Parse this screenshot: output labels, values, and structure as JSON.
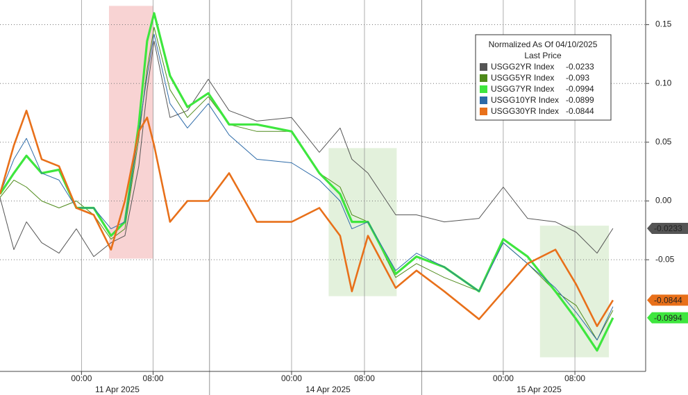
{
  "chart_data": {
    "type": "line",
    "legend_title": "Normalized As Of 04/10/2025",
    "legend_subtitle": "Last Price",
    "x": [
      -9.1,
      -7.55,
      -6.15,
      -4.45,
      -2.51,
      -0.57,
      1.37,
      3.3,
      4.85,
      6.4,
      7.33,
      8.11,
      9.89,
      11.83,
      14.16,
      16.48,
      19.58,
      23.46,
      26.56,
      28.88,
      30.2,
      31.99,
      35.09,
      37.41,
      40.51,
      44.39,
      47.1,
      49.81,
      52.92,
      55.24,
      57.57,
      59.35
    ],
    "xlim": [
      -9.1,
      63
    ],
    "xticks": [
      {
        "value": 0,
        "label": "00:00"
      },
      {
        "value": 8,
        "label": "08:00"
      },
      {
        "value": 23.46,
        "label": "00:00"
      },
      {
        "value": 31.6,
        "label": "08:00"
      },
      {
        "value": 47.1,
        "label": "00:00"
      },
      {
        "value": 55.1,
        "label": "08:00"
      }
    ],
    "date_labels": [
      "11 Apr 2025",
      "14 Apr 2025",
      "15 Apr 2025"
    ],
    "day_breaks": [
      14.3,
      38
    ],
    "ylim": [
      -0.145,
      0.171
    ],
    "yticks": [
      0.15,
      {
        "value": 0.1,
        "label": "0.10"
      },
      0.05,
      {
        "value": 0,
        "label": "0.00"
      },
      -0.05
    ],
    "grid": true,
    "highlights": [
      {
        "x": [
          3.07,
          8.03
        ],
        "y": [
          0.166,
          -0.049
        ],
        "color": "#f6c8c8"
      },
      {
        "x": [
          27.6,
          35.2
        ],
        "y": [
          0.045,
          -0.081
        ],
        "color": "#dcedd3"
      },
      {
        "x": [
          51.2,
          58.9
        ],
        "y": [
          -0.021,
          -0.133
        ],
        "color": "#dcedd3"
      }
    ],
    "series": [
      {
        "name": "USGG2YR Index",
        "color": "#555555",
        "values": [
          0.003,
          -0.0414,
          -0.0178,
          -0.0355,
          -0.0444,
          -0.0237,
          -0.0473,
          -0.0355,
          -0.0296,
          0.0296,
          0.0947,
          0.1361,
          0.071,
          0.0769,
          0.1036,
          0.0769,
          0.068,
          0.071,
          0.0414,
          0.0621,
          0.0355,
          0.0237,
          -0.0118,
          -0.0118,
          -0.0178,
          -0.0148,
          0.0118,
          -0.0148,
          -0.0178,
          -0.0266,
          -0.0444,
          -0.0233
        ]
      },
      {
        "name": "USGG5YR Index",
        "color": "#4e8a1a",
        "values": [
          0.003,
          0.0178,
          0.0118,
          0,
          -0.0059,
          0,
          -0.0118,
          -0.0325,
          -0.0237,
          0.0533,
          0.1124,
          0.1479,
          0.0947,
          0.071,
          0.0888,
          0.0651,
          0.0592,
          0.0592,
          0.0237,
          0.0118,
          -0.0118,
          -0.0178,
          -0.0651,
          -0.0533,
          -0.0651,
          -0.0769,
          -0.0355,
          -0.0533,
          -0.0769,
          -0.0888,
          -0.1183,
          -0.093
        ]
      },
      {
        "name": "USGG7YR Index",
        "color": "#3ee63e",
        "values": [
          0.0059,
          0.0237,
          0.0385,
          0.0237,
          0.0266,
          -0.0059,
          -0.0059,
          -0.0296,
          -0.0178,
          0.0651,
          0.1361,
          0.1598,
          0.1065,
          0.0799,
          0.0917,
          0.0651,
          0.0651,
          0.0592,
          0.0237,
          0.0059,
          -0.0178,
          -0.0178,
          -0.0621,
          -0.0473,
          -0.0562,
          -0.0769,
          -0.0325,
          -0.0473,
          -0.0769,
          -0.1006,
          -0.1272,
          -0.0994
        ]
      },
      {
        "name": "USGG10YR Index",
        "color": "#2c6aa8",
        "values": [
          0.0059,
          0.0355,
          0.0533,
          0.0237,
          0.0178,
          -0.0059,
          -0.0059,
          -0.0237,
          -0.0178,
          0.0592,
          0.1065,
          0.142,
          0.0828,
          0.0621,
          0.0828,
          0.0562,
          0.0355,
          0.0325,
          0.0178,
          0,
          -0.0237,
          -0.0178,
          -0.0592,
          -0.0444,
          -0.0562,
          -0.0769,
          -0.0355,
          -0.0533,
          -0.074,
          -0.0947,
          -0.1183,
          -0.0899
        ]
      },
      {
        "name": "USGG30YR Index",
        "color": "#e8701a",
        "values": [
          0.0059,
          0.0473,
          0.0769,
          0.0355,
          0.0296,
          -0.0059,
          -0.0118,
          -0.0414,
          0,
          0.0592,
          0.071,
          0.0473,
          -0.0178,
          0,
          0,
          0.0237,
          -0.0178,
          -0.0178,
          -0.0059,
          -0.0296,
          -0.0769,
          -0.0296,
          -0.074,
          -0.0592,
          -0.0769,
          -0.1006,
          -0.0769,
          -0.0533,
          -0.0414,
          -0.071,
          -0.1065,
          -0.0844
        ]
      }
    ]
  }
}
